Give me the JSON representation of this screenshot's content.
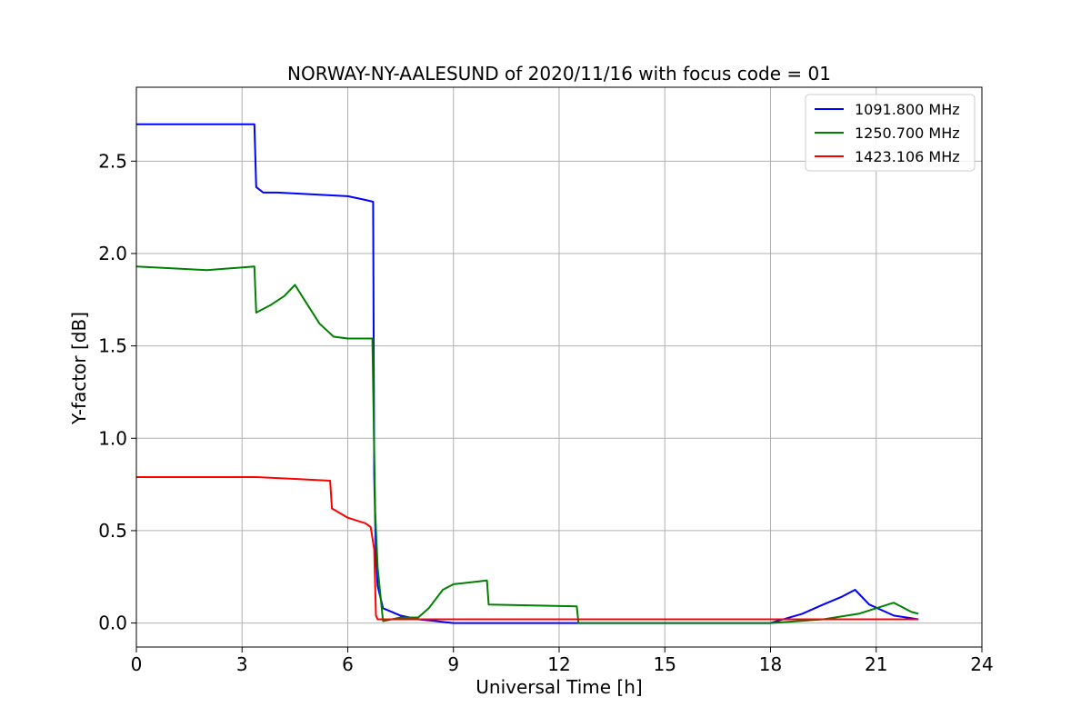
{
  "chart_data": {
    "type": "line",
    "title": "NORWAY-NY-AALESUND of 2020/11/16 with focus code = 01",
    "xlabel": "Universal Time [h]",
    "ylabel": "Y-factor [dB]",
    "xlim": [
      0,
      24
    ],
    "ylim": [
      -0.13,
      2.9
    ],
    "xticks": [
      0,
      3,
      6,
      9,
      12,
      15,
      18,
      21,
      24
    ],
    "xtick_labels": [
      "0",
      "3",
      "6",
      "9",
      "12",
      "15",
      "18",
      "21",
      "24"
    ],
    "yticks": [
      0.0,
      0.5,
      1.0,
      1.5,
      2.0,
      2.5
    ],
    "ytick_labels": [
      "0.0",
      "0.5",
      "1.0",
      "1.5",
      "2.0",
      "2.5"
    ],
    "grid": true,
    "legend_position": "top-right",
    "series": [
      {
        "name": "1091.800 MHz",
        "color": "#0000ff",
        "x": [
          0,
          3.35,
          3.4,
          3.6,
          4.0,
          5.0,
          6.0,
          6.5,
          6.72,
          6.75,
          6.8,
          6.85,
          7.0,
          7.5,
          8.0,
          8.5,
          9.0,
          12.0,
          15.0,
          18.0,
          18.9,
          19.5,
          20.0,
          20.4,
          20.8,
          21.5,
          22.2
        ],
        "values": [
          2.7,
          2.7,
          2.36,
          2.33,
          2.33,
          2.32,
          2.31,
          2.29,
          2.28,
          0.8,
          0.36,
          0.2,
          0.08,
          0.04,
          0.02,
          0.01,
          0.0,
          0.0,
          0.0,
          0.0,
          0.05,
          0.1,
          0.14,
          0.18,
          0.1,
          0.04,
          0.02
        ]
      },
      {
        "name": "1250.700 MHz",
        "color": "#008000",
        "x": [
          0,
          1.0,
          2.0,
          3.35,
          3.4,
          3.8,
          4.2,
          4.5,
          4.8,
          5.2,
          5.6,
          6.0,
          6.7,
          6.78,
          6.85,
          7.0,
          7.5,
          8.0,
          8.3,
          8.7,
          9.0,
          9.5,
          9.95,
          10.0,
          12.5,
          12.55,
          15.0,
          18.0,
          19.5,
          20.5,
          21.0,
          21.5,
          22.0,
          22.2
        ],
        "values": [
          1.93,
          1.92,
          1.91,
          1.93,
          1.68,
          1.72,
          1.77,
          1.83,
          1.74,
          1.62,
          1.55,
          1.54,
          1.54,
          0.6,
          0.3,
          0.01,
          0.03,
          0.03,
          0.08,
          0.18,
          0.21,
          0.22,
          0.23,
          0.1,
          0.09,
          0.0,
          0.0,
          0.0,
          0.02,
          0.05,
          0.08,
          0.11,
          0.06,
          0.05
        ]
      },
      {
        "name": "1423.106 MHz",
        "color": "#ff0000",
        "x": [
          0,
          3.35,
          3.4,
          4.5,
          5.5,
          5.55,
          6.0,
          6.5,
          6.65,
          6.75,
          6.8,
          6.85,
          7.5,
          9.0,
          10.0,
          12.5,
          13.0,
          13.3,
          15.0,
          18.0,
          18.5,
          19.5,
          20.5,
          21.5,
          22.2
        ],
        "values": [
          0.79,
          0.79,
          0.79,
          0.78,
          0.77,
          0.62,
          0.57,
          0.54,
          0.52,
          0.4,
          0.04,
          0.02,
          0.02,
          0.02,
          0.02,
          0.02,
          0.02,
          0.02,
          0.02,
          0.02,
          0.02,
          0.02,
          0.02,
          0.02,
          0.02
        ]
      }
    ]
  }
}
